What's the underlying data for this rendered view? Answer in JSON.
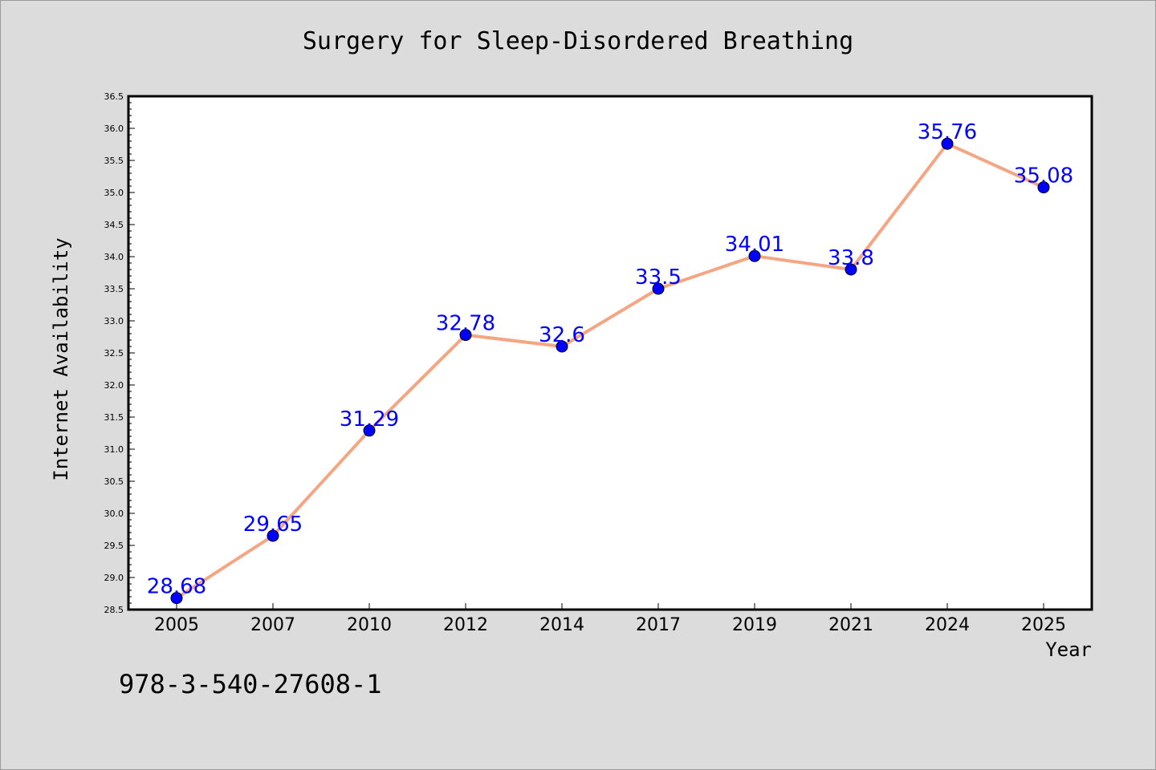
{
  "chart_data": {
    "type": "line",
    "title": "Surgery for Sleep-Disordered Breathing",
    "xlabel": "Year",
    "ylabel": "Internet Availability",
    "categories": [
      "2005",
      "2007",
      "2010",
      "2012",
      "2014",
      "2017",
      "2019",
      "2021",
      "2024",
      "2025"
    ],
    "series": [
      {
        "values": [
          28.68,
          29.65,
          31.29,
          32.78,
          32.6,
          33.5,
          34.01,
          33.8,
          35.76,
          35.08
        ],
        "data_labels": [
          "28.68",
          "29.65",
          "31.29",
          "32.78",
          "32.6",
          "33.5",
          "34.01",
          "33.8",
          "35.76",
          "35.08"
        ]
      }
    ],
    "ylim": [
      28.5,
      36.5
    ],
    "yticks": [
      "28.5",
      "29.0",
      "29.5",
      "30.0",
      "30.5",
      "31.0",
      "31.5",
      "32.0",
      "32.5",
      "33.0",
      "33.5",
      "34.0",
      "34.5",
      "35.0",
      "35.5",
      "36.0",
      "36.5"
    ],
    "grid": false,
    "legend": "none",
    "colors": {
      "line": "#f4a582",
      "marker": "#0000ff",
      "data_label": "#0000ff",
      "plot_background": "#ffffff",
      "page_background": "#dcdcdc"
    }
  },
  "footer_text": "978-3-540-27608-1"
}
